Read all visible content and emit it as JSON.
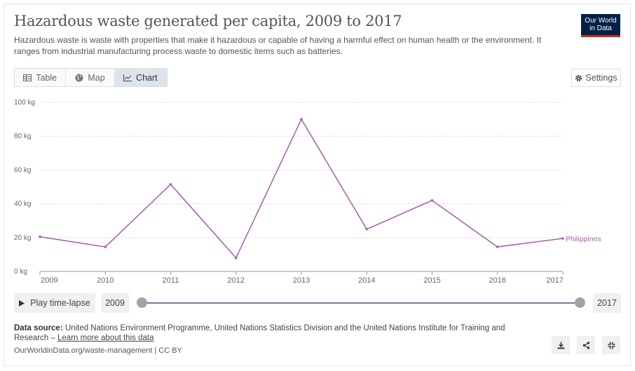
{
  "header": {
    "title": "Hazardous waste generated per capita, 2009 to 2017",
    "subtitle": "Hazardous waste is waste with properties that make it hazardous or capable of having a harmful effect on human health or the environment. It ranges from industrial manufacturing process waste to domestic items such as batteries.",
    "logo_line1": "Our World",
    "logo_line2": "in Data"
  },
  "tabs": [
    {
      "label": "Table",
      "icon": "table-icon"
    },
    {
      "label": "Map",
      "icon": "globe-icon"
    },
    {
      "label": "Chart",
      "icon": "line-chart-icon",
      "active": true
    }
  ],
  "settings_label": "Settings",
  "chart_data": {
    "type": "line",
    "x": [
      2009,
      2010,
      2011,
      2012,
      2013,
      2014,
      2015,
      2016,
      2017
    ],
    "series": [
      {
        "name": "Philippines",
        "values": [
          20.5,
          14.5,
          51.5,
          8,
          90,
          25,
          42,
          14.5,
          19.5
        ],
        "color": "#a65ea8"
      }
    ],
    "y_ticks": [
      0,
      20,
      40,
      60,
      80,
      100
    ],
    "y_unit": "kg",
    "ylim": [
      0,
      100
    ],
    "xlim": [
      2009,
      2017
    ],
    "grid": "horizontal dashed",
    "legend": "right end label"
  },
  "timeline": {
    "play_label": "Play time-lapse",
    "start_year": "2009",
    "end_year": "2017"
  },
  "footer": {
    "source_label": "Data source:",
    "source_text": " United Nations Environment Programme, United Nations Statistics Division and the United Nations Institute for Training and Research – ",
    "learn_more": "Learn more about this data",
    "license": "OurWorldinData.org/waste-management | CC BY"
  },
  "icons": {
    "download": "download-icon",
    "share": "share-icon",
    "fullscreen": "fullscreen-icon"
  }
}
